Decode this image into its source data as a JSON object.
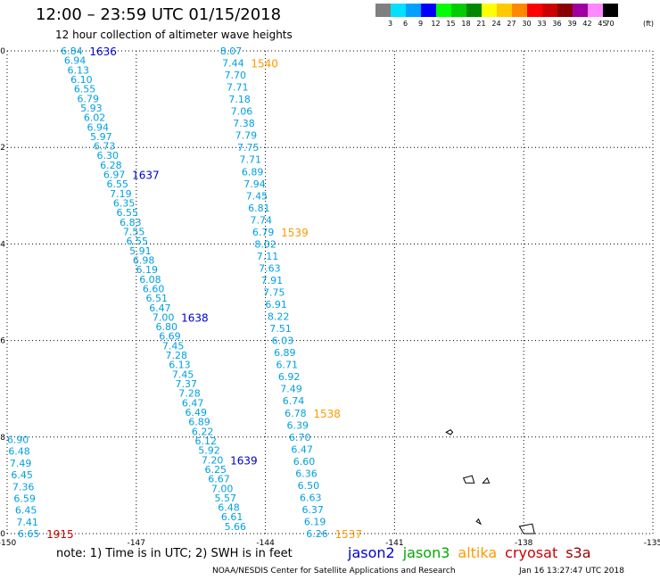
{
  "header": {
    "title": "12:00 – 23:59 UTC 01/15/2018",
    "subtitle": "12 hour collection of altimeter wave heights"
  },
  "color_scale": {
    "unit": "(ft)",
    "labels": [
      "3",
      "6",
      "9",
      "12",
      "15",
      "18",
      "21",
      "24",
      "27",
      "30",
      "33",
      "36",
      "39",
      "42",
      "45",
      "70"
    ],
    "colors": [
      "#808080",
      "#00e0ff",
      "#00a0ff",
      "#0000ff",
      "#00ff00",
      "#00cc00",
      "#008800",
      "#ffff00",
      "#ffc800",
      "#ff8800",
      "#ff0000",
      "#cc0000",
      "#8a0000",
      "#a000a0",
      "#ff88ff",
      "#000000"
    ]
  },
  "map": {
    "x_ticks": [
      "-150",
      "-147",
      "-144",
      "-141",
      "-138",
      "-135"
    ],
    "y_ticks": [
      "0",
      "-2",
      "-4",
      "-6",
      "-8",
      "-10"
    ],
    "x_range": [
      -150,
      -135
    ],
    "y_range": [
      -10,
      0
    ],
    "tracks": [
      {
        "name": "jason2-west",
        "color": "#00a0e0",
        "start": [
          -148.5,
          0
        ],
        "end": [
          -144.7,
          -9.85
        ],
        "values": [
          "6.84",
          "6.94",
          "6.13",
          "6.10",
          "6.55",
          "6.79",
          "5.93",
          "6.02",
          "6.94",
          "5.97",
          "6.73",
          "6.30",
          "6.28",
          "6.97",
          "6.55",
          "7.19",
          "6.35",
          "6.55",
          "6.83",
          "7.55",
          "6.55",
          "5.91",
          "6.98",
          "6.19",
          "6.08",
          "6.60",
          "6.51",
          "6.47",
          "7.00",
          "6.80",
          "6.69",
          "7.45",
          "7.28",
          "6.13",
          "7.45",
          "7.37",
          "7.28",
          "6.47",
          "6.49",
          "6.89",
          "6.22",
          "6.12",
          "5.92",
          "7.20",
          "6.25",
          "6.67",
          "7.00",
          "5.57",
          "6.48",
          "6.61",
          "5.66"
        ],
        "time_labels": [
          {
            "text": "1636",
            "index": 0
          },
          {
            "text": "1637",
            "index": 13
          },
          {
            "text": "1638",
            "index": 28
          },
          {
            "text": "1639",
            "index": 43
          }
        ],
        "time_color": "#0000cc"
      },
      {
        "name": "altika-east",
        "color": "#00a0e0",
        "start": [
          -144.8,
          0
        ],
        "end": [
          -142.8,
          -10.0
        ],
        "values": [
          "8.07",
          "7.44",
          "7.70",
          "7.71",
          "7.18",
          "7.06",
          "7.38",
          "7.79",
          "7.75",
          "7.71",
          "6.89",
          "7.94",
          "7.45",
          "6.81",
          "7.74",
          "6.79",
          "8.02",
          "7.11",
          "7.63",
          "7.91",
          "7.75",
          "6.91",
          "8.22",
          "7.51",
          "6.03",
          "6.89",
          "6.71",
          "6.92",
          "7.49",
          "6.74",
          "6.78",
          "6.39",
          "6.70",
          "6.47",
          "6.60",
          "6.36",
          "6.50",
          "6.63",
          "6.37",
          "6.19",
          "6.26"
        ],
        "time_labels": [
          {
            "text": "1540",
            "index": 1
          },
          {
            "text": "1539",
            "index": 15
          },
          {
            "text": "1538",
            "index": 30
          },
          {
            "text": "1537",
            "index": 40
          }
        ],
        "time_color": "#ff9900"
      },
      {
        "name": "cryosat-west-edge",
        "color": "#00a0e0",
        "start": [
          -149.75,
          -8.05
        ],
        "end": [
          -149.5,
          -10.0
        ],
        "values": [
          "6.90",
          "6.48",
          "7.49",
          "6.45",
          "7.36",
          "6.59",
          "6.45",
          "7.41",
          "6.65"
        ],
        "time_labels": [
          {
            "text": "1915",
            "index": 8
          }
        ],
        "time_color": "#cc0000"
      }
    ],
    "islands": [
      {
        "name": "island-1",
        "points": [
          [
            -139.8,
            -7.9
          ],
          [
            -139.7,
            -7.95
          ],
          [
            -139.65,
            -7.9
          ],
          [
            -139.7,
            -7.85
          ]
        ]
      },
      {
        "name": "island-2",
        "points": [
          [
            -139.4,
            -8.85
          ],
          [
            -139.2,
            -8.8
          ],
          [
            -139.15,
            -8.95
          ],
          [
            -139.35,
            -8.95
          ]
        ]
      },
      {
        "name": "island-3",
        "points": [
          [
            -138.95,
            -8.95
          ],
          [
            -138.8,
            -8.95
          ],
          [
            -138.85,
            -8.85
          ]
        ]
      },
      {
        "name": "island-4",
        "points": [
          [
            -139.1,
            -9.75
          ],
          [
            -139.0,
            -9.8
          ],
          [
            -139.05,
            -9.7
          ]
        ]
      },
      {
        "name": "island-5",
        "points": [
          [
            -138.1,
            -9.85
          ],
          [
            -137.8,
            -9.8
          ],
          [
            -137.75,
            -10.0
          ],
          [
            -138.0,
            -10.0
          ]
        ]
      }
    ]
  },
  "footer": {
    "note": "note:  1) Time is in UTC;  2) SWH is in feet",
    "satellites": [
      {
        "name": "jason2",
        "color": "#0000cc"
      },
      {
        "name": "jason3",
        "color": "#00aa00"
      },
      {
        "name": "altika",
        "color": "#ff9900"
      },
      {
        "name": "cryosat",
        "color": "#cc0000"
      },
      {
        "name": "s3a",
        "color": "#990000"
      }
    ],
    "credit": "NOAA/NESDIS Center for Satellite Applications and Research",
    "timestamp": "Jan 16 13:27:47 UTC 2018"
  }
}
